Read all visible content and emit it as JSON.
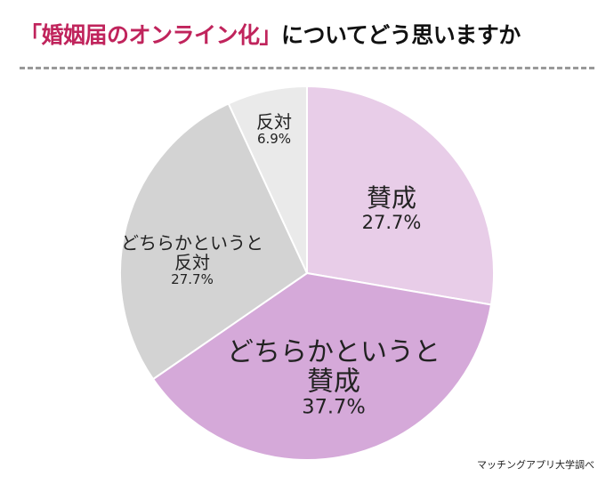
{
  "chart_data": {
    "type": "pie",
    "title": [
      "「婚姻届のオンライン化」",
      "についてどう思いますか"
    ],
    "title_colors": [
      "#c0245c",
      "#111111"
    ],
    "categories": [
      "賛成",
      "どちらかというと賛成",
      "どちらかというと反対",
      "反対"
    ],
    "values": [
      27.7,
      37.7,
      27.7,
      6.9
    ],
    "value_labels": [
      "27.7%",
      "37.7%",
      "27.7%",
      "6.9%"
    ],
    "colors": [
      "#e8cde8",
      "#d5a9d9",
      "#d3d3d3",
      "#eaeaea"
    ],
    "source": "マッチングアプリ大学調べ"
  }
}
